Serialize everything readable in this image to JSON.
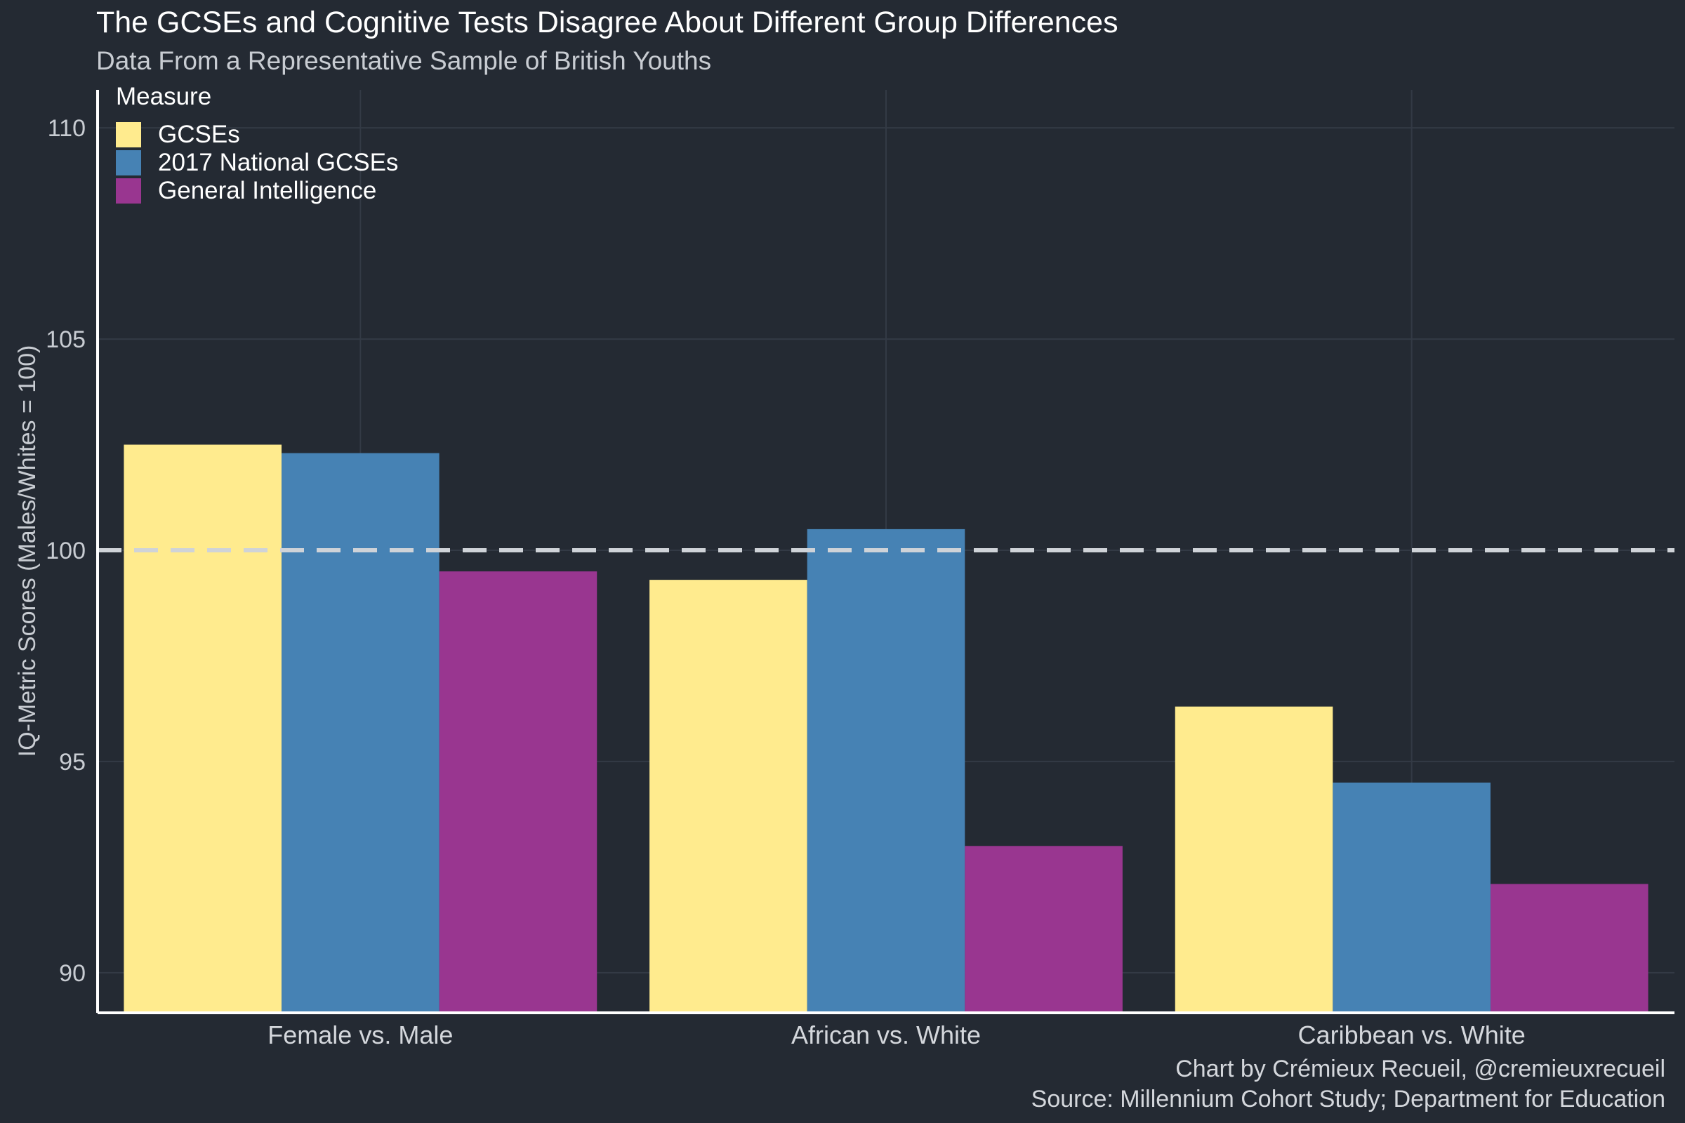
{
  "chart_data": {
    "type": "bar",
    "title": "The GCSEs and Cognitive Tests Disagree About Different Group Differences",
    "subtitle": "Data From a Representative Sample of British Youths",
    "xlabel": "",
    "ylabel": "IQ-Metric Scores (Males/Whites = 100)",
    "categories": [
      "Female vs. Male",
      "African vs. White",
      "Caribbean vs. White"
    ],
    "series": [
      {
        "name": "GCSEs",
        "color": "#ffeb8e",
        "values": [
          102.5,
          99.3,
          96.3
        ]
      },
      {
        "name": "2017 National GCSEs",
        "color": "#4682b4",
        "values": [
          102.3,
          100.5,
          94.5
        ]
      },
      {
        "name": "General Intelligence",
        "color": "#993690",
        "values": [
          99.5,
          93.0,
          92.1
        ]
      }
    ],
    "ylim": [
      89.05,
      110.9
    ],
    "yticks": [
      90,
      95,
      100,
      105,
      110
    ],
    "reference_line": {
      "y": 100,
      "style": "dashed",
      "color": "#cfd3d8"
    },
    "legend": {
      "title": "Measure",
      "position": "top-left"
    },
    "grid": true
  },
  "caption": {
    "line1": "Chart by Crémieux Recueil, @cremieuxrecueil",
    "line2": "Source: Millennium Cohort Study; Department for Education"
  }
}
